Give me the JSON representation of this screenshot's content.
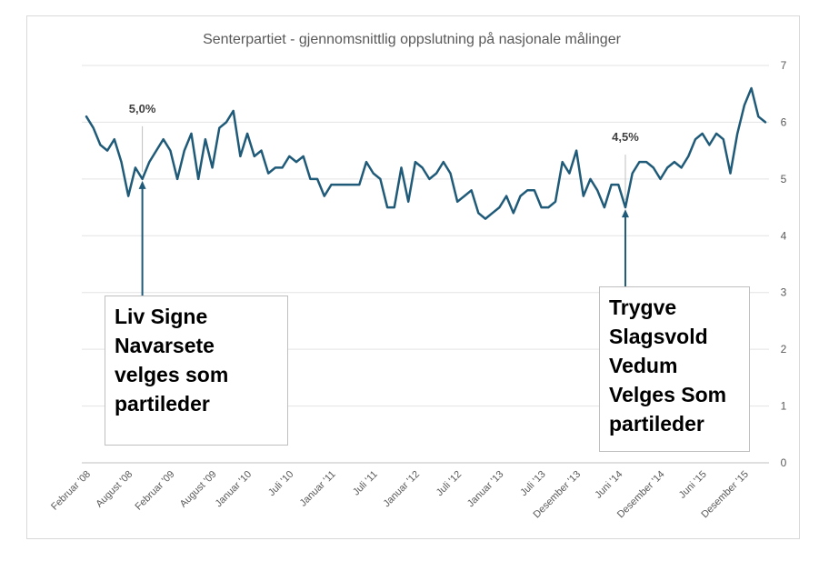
{
  "chart_data": {
    "type": "line",
    "title": "Senterpartiet - gjennomsnittlig oppslutning på nasjonale målinger",
    "xlabel": "",
    "ylabel": "",
    "ylim": [
      0,
      7
    ],
    "y_ticks": [
      "0",
      "1",
      "2",
      "3",
      "4",
      "5",
      "6",
      "7"
    ],
    "y_axis_side": "right",
    "grid": true,
    "x_tick_labels": [
      {
        "index": 0,
        "label": "Februar '08"
      },
      {
        "index": 6,
        "label": "August '08"
      },
      {
        "index": 12,
        "label": "Februar '09"
      },
      {
        "index": 18,
        "label": "August '09"
      },
      {
        "index": 23,
        "label": "Januar '10"
      },
      {
        "index": 29,
        "label": "Juli '10"
      },
      {
        "index": 35,
        "label": "Januar '11"
      },
      {
        "index": 41,
        "label": "Juli '11"
      },
      {
        "index": 47,
        "label": "Januar '12"
      },
      {
        "index": 53,
        "label": "Juli '12"
      },
      {
        "index": 59,
        "label": "Januar '13"
      },
      {
        "index": 65,
        "label": "Juli '13"
      },
      {
        "index": 70,
        "label": "Desember '13"
      },
      {
        "index": 76,
        "label": "Juni '14"
      },
      {
        "index": 82,
        "label": "Desember '14"
      },
      {
        "index": 88,
        "label": "Juni '15"
      },
      {
        "index": 94,
        "label": "Desember '15"
      }
    ],
    "series": [
      {
        "color": "#1f5a78",
        "values": [
          6.1,
          5.9,
          5.6,
          5.5,
          5.7,
          5.3,
          4.7,
          5.2,
          5.0,
          5.3,
          5.5,
          5.7,
          5.5,
          5.0,
          5.5,
          5.8,
          5.0,
          5.7,
          5.2,
          5.9,
          6.0,
          6.2,
          5.4,
          5.8,
          5.4,
          5.5,
          5.1,
          5.2,
          5.2,
          5.4,
          5.3,
          5.4,
          5.0,
          5.0,
          4.7,
          4.9,
          4.9,
          4.9,
          4.9,
          4.9,
          5.3,
          5.1,
          5.0,
          4.5,
          4.5,
          5.2,
          4.6,
          5.3,
          5.2,
          5.0,
          5.1,
          5.3,
          5.1,
          4.6,
          4.7,
          4.8,
          4.4,
          4.3,
          4.4,
          4.5,
          4.7,
          4.4,
          4.7,
          4.8,
          4.8,
          4.5,
          4.5,
          4.6,
          5.3,
          5.1,
          5.5,
          4.7,
          5.0,
          4.8,
          4.5,
          4.9,
          4.9,
          4.5,
          5.1,
          5.3,
          5.3,
          5.2,
          5.0,
          5.2,
          5.3,
          5.2,
          5.4,
          5.7,
          5.8,
          5.6,
          5.8,
          5.7,
          5.1,
          5.8,
          6.3,
          6.6,
          6.1,
          6.0
        ]
      }
    ],
    "annotations": [
      {
        "label": "5,0%",
        "index": 8,
        "value": 5.0,
        "text": "Liv Signe Navarsete velges som partileder"
      },
      {
        "label": "4,5%",
        "index": 77,
        "value": 4.5,
        "text": "Trygve Slagsvold Vedum Velges Som partileder"
      }
    ]
  }
}
